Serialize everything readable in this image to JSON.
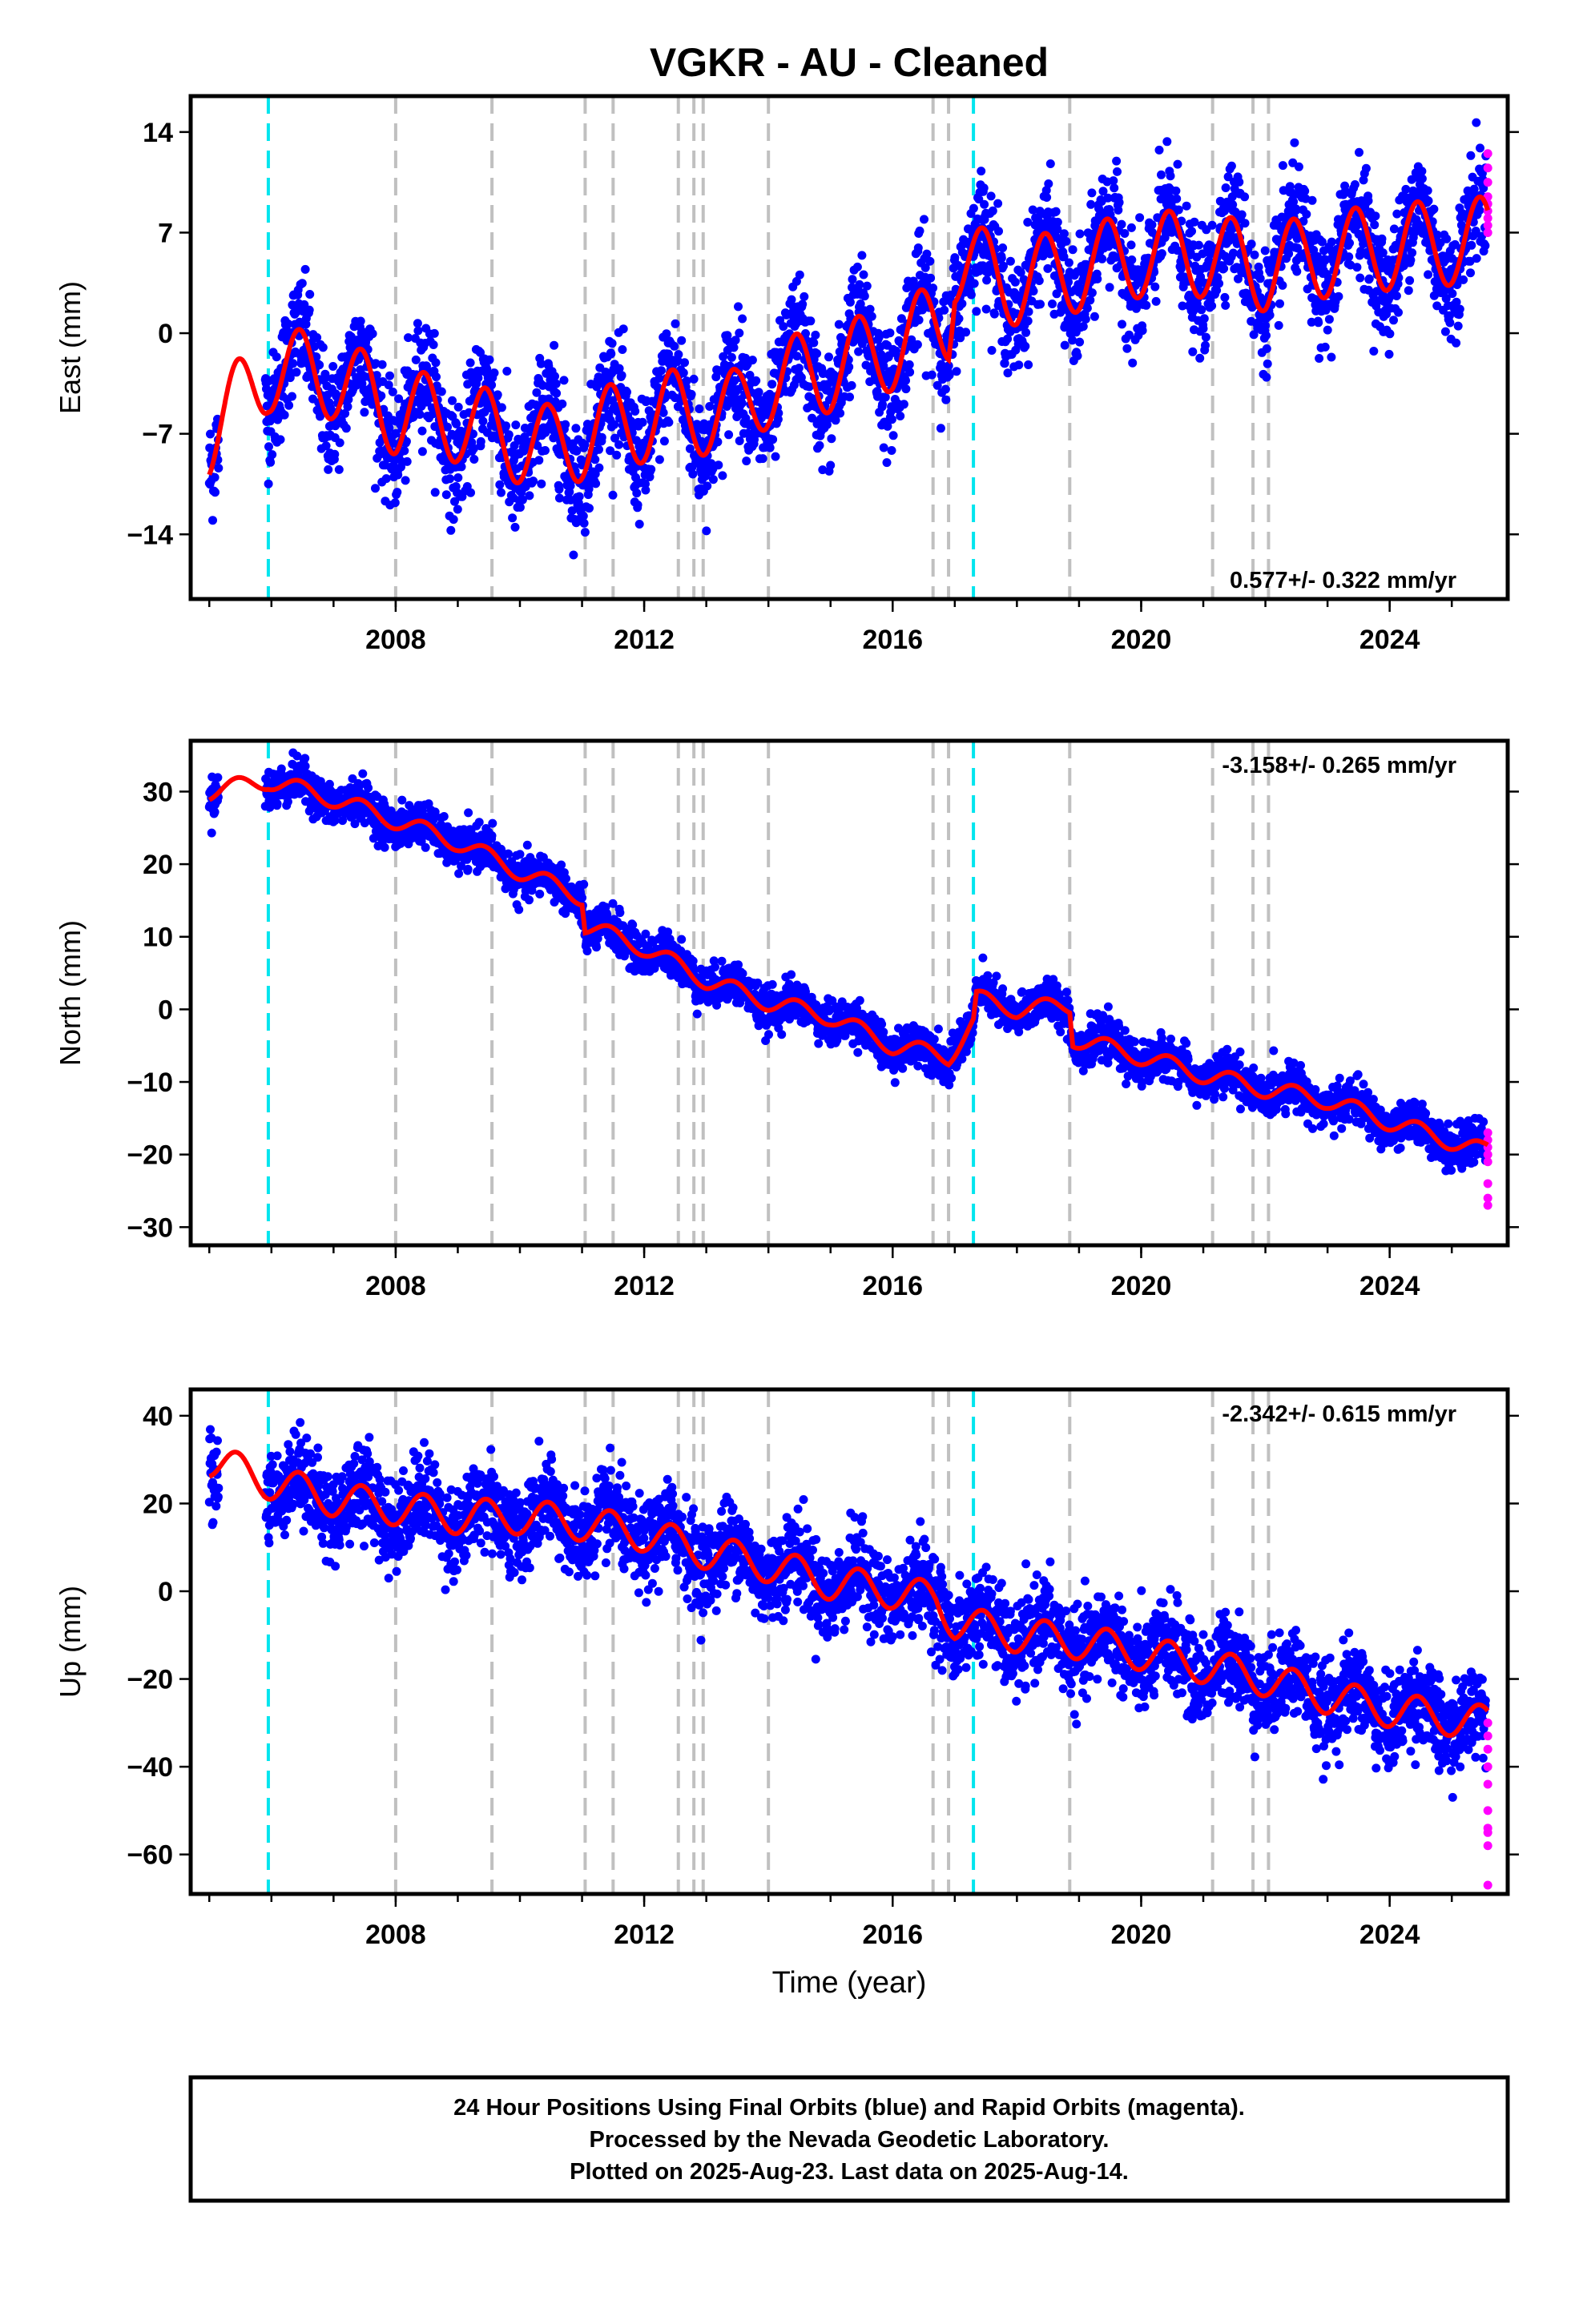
{
  "title": "VGKR  - AU - Cleaned",
  "xlabel": "Time (year)",
  "footer": {
    "line1": "24 Hour Positions Using Final Orbits (blue) and Rapid Orbits (magenta).",
    "line2": "Processed by the Nevada Geodetic Laboratory.",
    "line3": "Plotted on 2025-Aug-23. Last data on 2025-Aug-14."
  },
  "colors": {
    "final_points": "#0000ff",
    "rapid_points": "#ff00ff",
    "model": "#ff0000",
    "antenna_change": "#00e5ee",
    "other_step": "#c0c0c0"
  },
  "chart_data": [
    {
      "type": "scatter",
      "component": "east",
      "ylabel": "East (mm)",
      "xlim": [
        2004.7,
        2025.9
      ],
      "ylim": [
        -18.5,
        16.5
      ],
      "xticks": [
        2008,
        2012,
        2016,
        2020,
        2024
      ],
      "yticks": [
        -14,
        -7,
        0,
        7,
        14
      ],
      "rate_label": "0.577+/- 0.322 mm/yr",
      "rate_position": "bottom-right",
      "steps_cyan": [
        2005.95,
        2017.3
      ],
      "steps_gray": [
        2008.0,
        2009.55,
        2011.05,
        2011.5,
        2012.55,
        2012.8,
        2012.95,
        2014.0,
        2016.65,
        2016.9,
        2018.85,
        2021.15,
        2021.8,
        2022.05
      ],
      "model_knots": [
        [
          2005.0,
          -7.0
        ],
        [
          2005.95,
          -2.5
        ],
        [
          2007.0,
          -3.0
        ],
        [
          2008.0,
          -5.5
        ],
        [
          2009.0,
          -6.0
        ],
        [
          2009.55,
          -7.0
        ],
        [
          2010.5,
          -8.0
        ],
        [
          2011.5,
          -6.5
        ],
        [
          2012.5,
          -5.5
        ],
        [
          2013.5,
          -5.5
        ],
        [
          2014.0,
          -3.5
        ],
        [
          2015.0,
          -2.5
        ],
        [
          2016.0,
          -1.0
        ],
        [
          2016.9,
          1.0
        ],
        [
          2017.0,
          5.0
        ],
        [
          2018.0,
          3.5
        ],
        [
          2019.0,
          4.5
        ],
        [
          2020.0,
          5.5
        ],
        [
          2021.0,
          5.5
        ],
        [
          2022.0,
          4.5
        ],
        [
          2023.0,
          5.5
        ],
        [
          2024.0,
          6.0
        ],
        [
          2025.5,
          6.5
        ]
      ],
      "seasonal_amplitude": 3.0,
      "scatter_sd": 1.9,
      "rapid_points_y": [
        12.5,
        11.5,
        10.5,
        9.5,
        9.0,
        8.5,
        8.0,
        7.5,
        7.0
      ]
    },
    {
      "type": "scatter",
      "component": "north",
      "ylabel": "North (mm)",
      "xlim": [
        2004.7,
        2025.9
      ],
      "ylim": [
        -32.5,
        37.0
      ],
      "xticks": [
        2008,
        2012,
        2016,
        2020,
        2024
      ],
      "yticks": [
        -30,
        -20,
        -10,
        0,
        10,
        20,
        30
      ],
      "rate_label": "-3.158+/- 0.265 mm/yr",
      "rate_position": "top-right",
      "steps_cyan": [
        2005.95,
        2017.3
      ],
      "steps_gray": [
        2008.0,
        2009.55,
        2011.05,
        2011.5,
        2012.55,
        2012.8,
        2012.95,
        2014.0,
        2016.65,
        2016.9,
        2018.85,
        2021.15,
        2021.8,
        2022.05
      ],
      "model_knots": [
        [
          2005.0,
          30.0
        ],
        [
          2005.95,
          31.5
        ],
        [
          2007.0,
          29.0
        ],
        [
          2008.0,
          26.0
        ],
        [
          2009.0,
          23.0
        ],
        [
          2010.0,
          19.0
        ],
        [
          2011.0,
          15.5
        ],
        [
          2011.05,
          11.5
        ],
        [
          2012.0,
          8.5
        ],
        [
          2013.0,
          4.0
        ],
        [
          2014.0,
          1.0
        ],
        [
          2015.0,
          -1.0
        ],
        [
          2016.0,
          -5.0
        ],
        [
          2016.9,
          -6.5
        ],
        [
          2017.3,
          -2.0
        ],
        [
          2017.35,
          1.5
        ],
        [
          2018.0,
          0.0
        ],
        [
          2018.85,
          0.5
        ],
        [
          2018.9,
          -4.0
        ],
        [
          2020.0,
          -6.5
        ],
        [
          2021.0,
          -9.0
        ],
        [
          2022.0,
          -11.0
        ],
        [
          2023.0,
          -12.5
        ],
        [
          2024.0,
          -15.5
        ],
        [
          2025.5,
          -19.5
        ]
      ],
      "seasonal_amplitude": 1.2,
      "scatter_sd": 1.4,
      "rapid_points_y": [
        -17.0,
        -18.0,
        -19.0,
        -20.0,
        -21.0,
        -24.0,
        -26.0,
        -27.0
      ]
    },
    {
      "type": "scatter",
      "component": "up",
      "ylabel": "Up (mm)",
      "xlim": [
        2004.7,
        2025.9
      ],
      "ylim": [
        -69.0,
        46.0
      ],
      "xticks": [
        2008,
        2012,
        2016,
        2020,
        2024
      ],
      "yticks": [
        -60,
        -40,
        -20,
        0,
        20,
        40
      ],
      "rate_label": "-2.342+/- 0.615 mm/yr",
      "rate_position": "top-right",
      "steps_cyan": [
        2005.95,
        2017.3
      ],
      "steps_gray": [
        2008.0,
        2009.55,
        2011.05,
        2011.5,
        2012.55,
        2012.8,
        2012.95,
        2014.0,
        2016.65,
        2016.9,
        2018.85,
        2021.15,
        2021.8,
        2022.05
      ],
      "model_knots": [
        [
          2005.0,
          30.0
        ],
        [
          2005.95,
          25.0
        ],
        [
          2007.0,
          21.0
        ],
        [
          2008.0,
          19.0
        ],
        [
          2009.0,
          17.0
        ],
        [
          2010.0,
          17.0
        ],
        [
          2011.0,
          15.5
        ],
        [
          2012.0,
          13.0
        ],
        [
          2013.0,
          9.0
        ],
        [
          2014.0,
          6.0
        ],
        [
          2015.0,
          2.0
        ],
        [
          2016.0,
          0.0
        ],
        [
          2016.7,
          -2.0
        ],
        [
          2017.0,
          -7.0
        ],
        [
          2018.0,
          -10.0
        ],
        [
          2019.0,
          -11.5
        ],
        [
          2020.0,
          -14.0
        ],
        [
          2021.0,
          -17.0
        ],
        [
          2022.0,
          -20.0
        ],
        [
          2023.0,
          -24.0
        ],
        [
          2024.0,
          -27.0
        ],
        [
          2025.5,
          -30.0
        ]
      ],
      "seasonal_amplitude": 4.0,
      "scatter_sd": 5.0,
      "rapid_points_y": [
        -30.0,
        -33.0,
        -36.0,
        -40.0,
        -44.0,
        -50.0,
        -54.0,
        -55.0,
        -58.0,
        -67.0
      ]
    }
  ]
}
